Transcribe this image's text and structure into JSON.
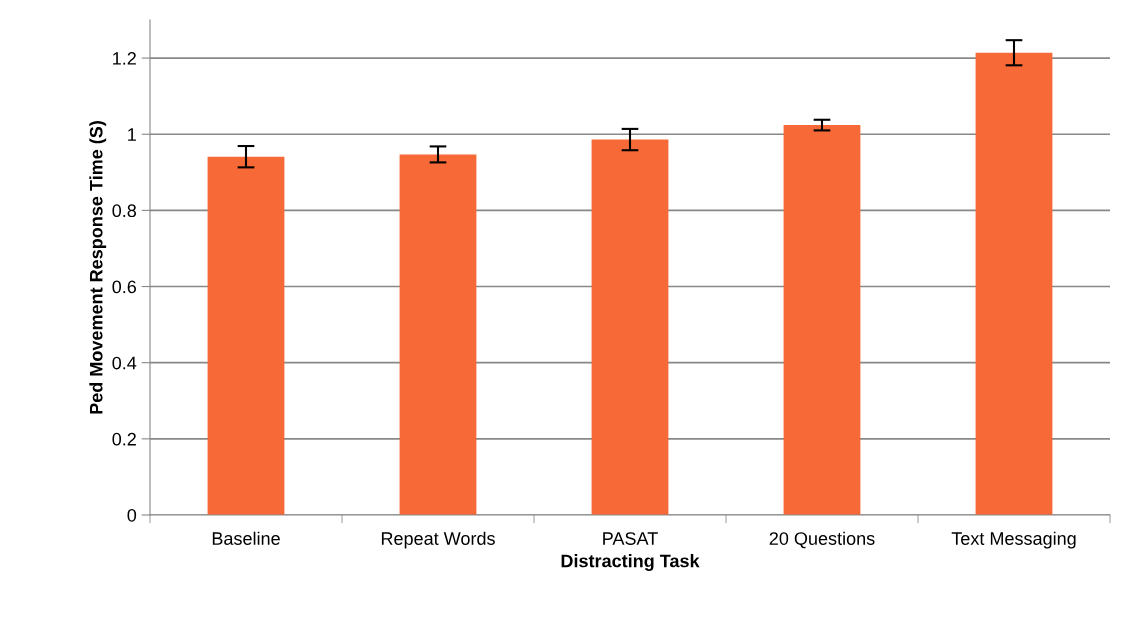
{
  "chart_data": {
    "type": "bar",
    "xlabel": "Distracting Task",
    "ylabel": "Ped Movement Response Time (S)",
    "categories": [
      "Baseline",
      "Repeat Words",
      "PASAT",
      "20 Questions",
      "Text Messaging"
    ],
    "values": [
      0.941,
      0.947,
      0.986,
      1.024,
      1.214
    ],
    "errors": [
      0.028,
      0.021,
      0.028,
      0.014,
      0.033
    ],
    "color": "#f76936",
    "ylim": [
      0,
      1.3
    ],
    "yticks": [
      0,
      0.2,
      0.4,
      0.6,
      0.8,
      1,
      1.2
    ],
    "grid": "y",
    "legend": false
  }
}
